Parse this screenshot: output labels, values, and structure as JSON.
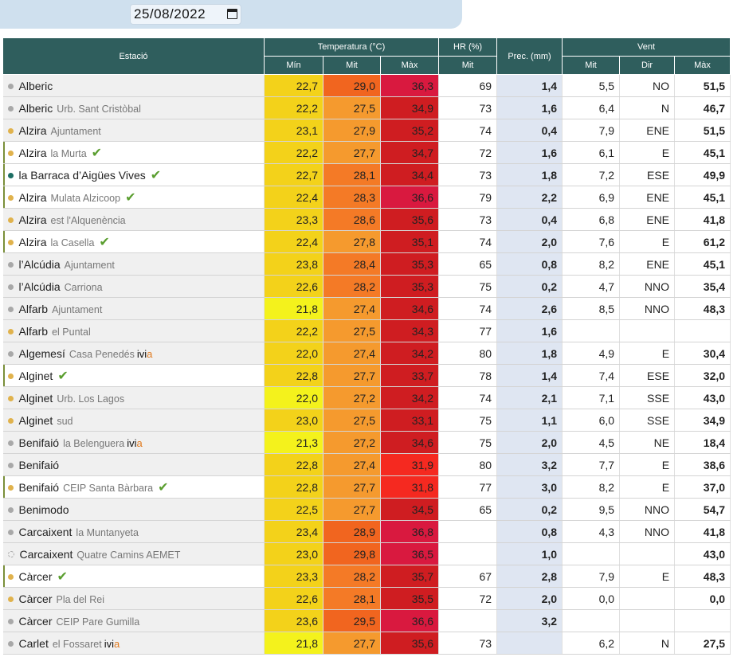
{
  "date_picker": {
    "value": "25/08/2022",
    "icon": "calendar-icon"
  },
  "headers": {
    "station": "Estació",
    "temperature": "Temperatura (°C)",
    "hr": "HR (%)",
    "prec": "Prec. (mm)",
    "wind": "Vent",
    "min": "Mín",
    "mid": "Mit",
    "max": "Màx",
    "hr_mid": "Mit",
    "wind_mid": "Mit",
    "wind_dir": "Dir",
    "wind_max": "Màx"
  },
  "colors": {
    "dot_grey": "#a8a8a8",
    "dot_orange": "#e0b24c",
    "dot_teal": "#1c6e63",
    "temp_yellow": "#f3d21a",
    "temp_yellow_bright": "#f4f21c",
    "temp_orange": "#f47a26",
    "temp_orange_light": "#f59a2e",
    "temp_orange_dark": "#f1651f",
    "temp_red": "#cf1d21",
    "temp_red_bright": "#f52920",
    "temp_crimson": "#d9193f",
    "header_bg": "#2f5e5d",
    "prec_bg": "#dfe6f2"
  },
  "rows": [
    {
      "name": "Alberic",
      "sub": "",
      "dot": "grey",
      "check": false,
      "ivia": false,
      "hl": false,
      "min": "22,7",
      "min_c": "temp_yellow",
      "mid": "29,0",
      "mid_c": "temp_orange_dark",
      "max": "36,3",
      "max_c": "temp_crimson",
      "hr": "69",
      "prec": "1,4",
      "wmid": "5,5",
      "wdir": "NO",
      "wmax": "51,5"
    },
    {
      "name": "Alberic",
      "sub": "Urb. Sant Cristòbal",
      "dot": "grey",
      "check": false,
      "ivia": false,
      "hl": false,
      "min": "22,2",
      "min_c": "temp_yellow",
      "mid": "27,5",
      "mid_c": "temp_orange_light",
      "max": "34,9",
      "max_c": "temp_red",
      "hr": "73",
      "prec": "1,6",
      "wmid": "6,4",
      "wdir": "N",
      "wmax": "46,7"
    },
    {
      "name": "Alzira",
      "sub": "Ajuntament",
      "dot": "orange",
      "check": false,
      "ivia": false,
      "hl": false,
      "min": "23,1",
      "min_c": "temp_yellow",
      "mid": "27,9",
      "mid_c": "temp_orange_light",
      "max": "35,2",
      "max_c": "temp_red",
      "hr": "74",
      "prec": "0,4",
      "wmid": "7,9",
      "wdir": "ENE",
      "wmax": "51,5"
    },
    {
      "name": "Alzira",
      "sub": "la Murta",
      "dot": "orange",
      "check": true,
      "ivia": false,
      "hl": true,
      "min": "22,2",
      "min_c": "temp_yellow",
      "mid": "27,7",
      "mid_c": "temp_orange_light",
      "max": "34,7",
      "max_c": "temp_red",
      "hr": "72",
      "prec": "1,6",
      "wmid": "6,1",
      "wdir": "E",
      "wmax": "45,1"
    },
    {
      "name": "la Barraca d’Aigües Vives",
      "sub": "",
      "dot": "teal",
      "check": true,
      "ivia": false,
      "hl": true,
      "min": "22,7",
      "min_c": "temp_yellow",
      "mid": "28,1",
      "mid_c": "temp_orange",
      "max": "34,4",
      "max_c": "temp_red",
      "hr": "73",
      "prec": "1,8",
      "wmid": "7,2",
      "wdir": "ESE",
      "wmax": "49,9"
    },
    {
      "name": "Alzira",
      "sub": "Mulata Alzicoop",
      "dot": "orange",
      "check": true,
      "ivia": false,
      "hl": true,
      "min": "22,4",
      "min_c": "temp_yellow",
      "mid": "28,3",
      "mid_c": "temp_orange",
      "max": "36,6",
      "max_c": "temp_crimson",
      "hr": "79",
      "prec": "2,2",
      "wmid": "6,9",
      "wdir": "ENE",
      "wmax": "45,1"
    },
    {
      "name": "Alzira",
      "sub": "est l'Alquenència",
      "dot": "orange",
      "check": false,
      "ivia": false,
      "hl": false,
      "min": "23,3",
      "min_c": "temp_yellow",
      "mid": "28,6",
      "mid_c": "temp_orange",
      "max": "35,6",
      "max_c": "temp_red",
      "hr": "73",
      "prec": "0,4",
      "wmid": "6,8",
      "wdir": "ENE",
      "wmax": "41,8"
    },
    {
      "name": "Alzira",
      "sub": "la Casella",
      "dot": "orange",
      "check": true,
      "ivia": false,
      "hl": true,
      "min": "22,4",
      "min_c": "temp_yellow",
      "mid": "27,8",
      "mid_c": "temp_orange_light",
      "max": "35,1",
      "max_c": "temp_red",
      "hr": "74",
      "prec": "2,0",
      "wmid": "7,6",
      "wdir": "E",
      "wmax": "61,2"
    },
    {
      "name": "l’Alcúdia",
      "sub": "Ajuntament",
      "dot": "grey",
      "check": false,
      "ivia": false,
      "hl": false,
      "min": "23,8",
      "min_c": "temp_yellow",
      "mid": "28,4",
      "mid_c": "temp_orange",
      "max": "35,3",
      "max_c": "temp_red",
      "hr": "65",
      "prec": "0,8",
      "wmid": "8,2",
      "wdir": "ENE",
      "wmax": "45,1"
    },
    {
      "name": "l’Alcúdia",
      "sub": "Carriona",
      "dot": "grey",
      "check": false,
      "ivia": false,
      "hl": false,
      "min": "22,6",
      "min_c": "temp_yellow",
      "mid": "28,2",
      "mid_c": "temp_orange",
      "max": "35,3",
      "max_c": "temp_red",
      "hr": "75",
      "prec": "0,2",
      "wmid": "4,7",
      "wdir": "NNO",
      "wmax": "35,4"
    },
    {
      "name": "Alfarb",
      "sub": "Ajuntament",
      "dot": "grey",
      "check": false,
      "ivia": false,
      "hl": false,
      "min": "21,8",
      "min_c": "temp_yellow_bright",
      "mid": "27,4",
      "mid_c": "temp_orange_light",
      "max": "34,6",
      "max_c": "temp_red",
      "hr": "74",
      "prec": "2,6",
      "wmid": "8,5",
      "wdir": "NNO",
      "wmax": "48,3"
    },
    {
      "name": "Alfarb",
      "sub": "el Puntal",
      "dot": "orange",
      "check": false,
      "ivia": false,
      "hl": false,
      "min": "22,2",
      "min_c": "temp_yellow",
      "mid": "27,5",
      "mid_c": "temp_orange_light",
      "max": "34,3",
      "max_c": "temp_red",
      "hr": "77",
      "prec": "1,6",
      "wmid": "",
      "wdir": "",
      "wmax": ""
    },
    {
      "name": "Algemesí",
      "sub": "Casa Penedés",
      "dot": "grey",
      "check": false,
      "ivia": true,
      "hl": false,
      "min": "22,0",
      "min_c": "temp_yellow",
      "mid": "27,4",
      "mid_c": "temp_orange_light",
      "max": "34,2",
      "max_c": "temp_red",
      "hr": "80",
      "prec": "1,8",
      "wmid": "4,9",
      "wdir": "E",
      "wmax": "30,4"
    },
    {
      "name": "Alginet",
      "sub": "",
      "dot": "orange",
      "check": true,
      "ivia": false,
      "hl": true,
      "min": "22,8",
      "min_c": "temp_yellow",
      "mid": "27,7",
      "mid_c": "temp_orange_light",
      "max": "33,7",
      "max_c": "temp_red",
      "hr": "78",
      "prec": "1,4",
      "wmid": "7,4",
      "wdir": "ESE",
      "wmax": "32,0"
    },
    {
      "name": "Alginet",
      "sub": "Urb. Los Lagos",
      "dot": "orange",
      "check": false,
      "ivia": false,
      "hl": false,
      "min": "22,0",
      "min_c": "temp_yellow_bright",
      "mid": "27,2",
      "mid_c": "temp_orange_light",
      "max": "34,2",
      "max_c": "temp_red",
      "hr": "74",
      "prec": "2,1",
      "wmid": "7,1",
      "wdir": "SSE",
      "wmax": "43,0"
    },
    {
      "name": "Alginet",
      "sub": "sud",
      "dot": "orange",
      "check": false,
      "ivia": false,
      "hl": false,
      "min": "23,0",
      "min_c": "temp_yellow",
      "mid": "27,5",
      "mid_c": "temp_orange_light",
      "max": "33,1",
      "max_c": "temp_red",
      "hr": "75",
      "prec": "1,1",
      "wmid": "6,0",
      "wdir": "SSE",
      "wmax": "34,9"
    },
    {
      "name": "Benifaió",
      "sub": "la Belenguera",
      "dot": "grey",
      "check": false,
      "ivia": true,
      "hl": false,
      "min": "21,3",
      "min_c": "temp_yellow_bright",
      "mid": "27,2",
      "mid_c": "temp_orange_light",
      "max": "34,6",
      "max_c": "temp_red",
      "hr": "75",
      "prec": "2,0",
      "wmid": "4,5",
      "wdir": "NE",
      "wmax": "18,4"
    },
    {
      "name": "Benifaió",
      "sub": "",
      "dot": "grey",
      "check": false,
      "ivia": false,
      "hl": false,
      "min": "22,8",
      "min_c": "temp_yellow",
      "mid": "27,4",
      "mid_c": "temp_orange_light",
      "max": "31,9",
      "max_c": "temp_red_bright",
      "hr": "80",
      "prec": "3,2",
      "wmid": "7,7",
      "wdir": "E",
      "wmax": "38,6"
    },
    {
      "name": "Benifaió",
      "sub": "CEIP Santa Bàrbara",
      "dot": "orange",
      "check": true,
      "ivia": false,
      "hl": true,
      "min": "22,8",
      "min_c": "temp_yellow",
      "mid": "27,7",
      "mid_c": "temp_orange_light",
      "max": "31,8",
      "max_c": "temp_red_bright",
      "hr": "77",
      "prec": "3,0",
      "wmid": "8,2",
      "wdir": "E",
      "wmax": "37,0"
    },
    {
      "name": "Benimodo",
      "sub": "",
      "dot": "grey",
      "check": false,
      "ivia": false,
      "hl": false,
      "min": "22,5",
      "min_c": "temp_yellow",
      "mid": "27,7",
      "mid_c": "temp_orange_light",
      "max": "34,5",
      "max_c": "temp_red",
      "hr": "65",
      "prec": "0,2",
      "wmid": "9,5",
      "wdir": "NNO",
      "wmax": "54,7"
    },
    {
      "name": "Carcaixent",
      "sub": "la Muntanyeta",
      "dot": "grey",
      "check": false,
      "ivia": false,
      "hl": false,
      "min": "23,4",
      "min_c": "temp_yellow",
      "mid": "28,9",
      "mid_c": "temp_orange_dark",
      "max": "36,8",
      "max_c": "temp_crimson",
      "hr": "",
      "prec": "0,8",
      "wmid": "4,3",
      "wdir": "NNO",
      "wmax": "41,8"
    },
    {
      "name": "Carcaixent",
      "sub": "Quatre Camins AEMET",
      "dot": "dashed",
      "check": false,
      "ivia": false,
      "hl": false,
      "min": "23,0",
      "min_c": "temp_yellow",
      "mid": "29,8",
      "mid_c": "temp_orange_dark",
      "max": "36,5",
      "max_c": "temp_crimson",
      "hr": "",
      "prec": "1,0",
      "wmid": "",
      "wdir": "",
      "wmax": "43,0"
    },
    {
      "name": "Càrcer",
      "sub": "",
      "dot": "orange",
      "check": true,
      "ivia": false,
      "hl": true,
      "min": "23,3",
      "min_c": "temp_yellow",
      "mid": "28,2",
      "mid_c": "temp_orange",
      "max": "35,7",
      "max_c": "temp_red",
      "hr": "67",
      "prec": "2,8",
      "wmid": "7,9",
      "wdir": "E",
      "wmax": "48,3"
    },
    {
      "name": "Càrcer",
      "sub": "Pla del Rei",
      "dot": "orange",
      "check": false,
      "ivia": false,
      "hl": false,
      "min": "22,6",
      "min_c": "temp_yellow",
      "mid": "28,1",
      "mid_c": "temp_orange",
      "max": "35,5",
      "max_c": "temp_red",
      "hr": "72",
      "prec": "2,0",
      "wmid": "0,0",
      "wdir": "",
      "wmax": "0,0"
    },
    {
      "name": "Càrcer",
      "sub": "CEIP Pare Gumilla",
      "dot": "grey",
      "check": false,
      "ivia": false,
      "hl": false,
      "min": "23,6",
      "min_c": "temp_yellow",
      "mid": "29,5",
      "mid_c": "temp_orange_dark",
      "max": "36,6",
      "max_c": "temp_crimson",
      "hr": "",
      "prec": "3,2",
      "wmid": "",
      "wdir": "",
      "wmax": ""
    },
    {
      "name": "Carlet",
      "sub": "el Fossaret",
      "dot": "grey",
      "check": false,
      "ivia": true,
      "hl": false,
      "min": "21,8",
      "min_c": "temp_yellow_bright",
      "mid": "27,7",
      "mid_c": "temp_orange_light",
      "max": "35,6",
      "max_c": "temp_red",
      "hr": "73",
      "prec": "",
      "wmid": "6,2",
      "wdir": "N",
      "wmax": "27,5"
    }
  ]
}
